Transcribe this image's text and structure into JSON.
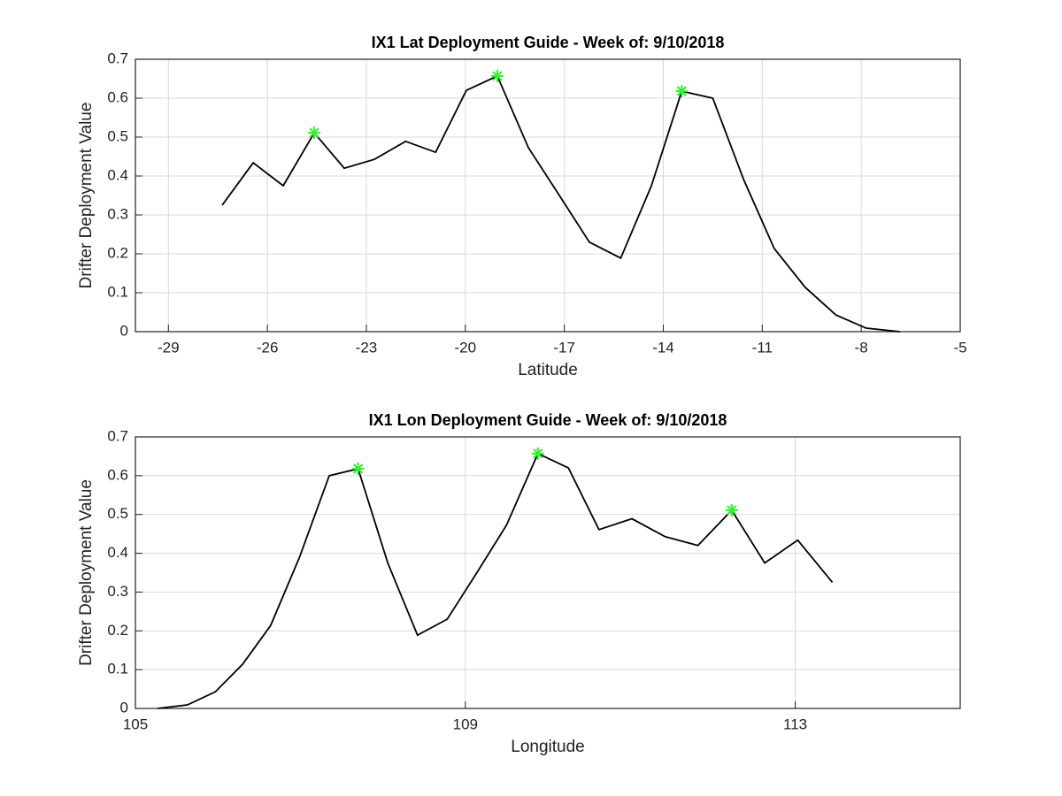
{
  "chart_data": [
    {
      "type": "line",
      "title": "IX1 Lat Deployment Guide - Week of: 9/10/2018",
      "x_label": "Latitude",
      "y_label": "Drifter Deployment Value",
      "xlim": [
        -30,
        -5
      ],
      "xticks": [
        -29,
        -26,
        -23,
        -20,
        -17,
        -14,
        -11,
        -8,
        -5
      ],
      "ylim": [
        0,
        0.7
      ],
      "yticks": [
        0,
        0.1,
        0.2,
        0.3,
        0.4,
        0.5,
        0.6,
        0.7
      ],
      "grid": true,
      "series": [
        {
          "color": "#000000",
          "x": [
            -27.37,
            -26.43,
            -25.52,
            -24.58,
            -23.67,
            -22.75,
            -21.81,
            -20.9,
            -19.97,
            -19.03,
            -18.09,
            -17.15,
            -16.24,
            -15.29,
            -14.36,
            -13.44,
            -12.5,
            -11.56,
            -10.64,
            -9.7,
            -8.77,
            -7.85,
            -6.83
          ],
          "values": [
            0.325,
            0.434,
            0.375,
            0.511,
            0.42,
            0.443,
            0.489,
            0.461,
            0.62,
            0.657,
            0.473,
            0.35,
            0.23,
            0.189,
            0.375,
            0.618,
            0.6,
            0.39,
            0.214,
            0.114,
            0.043,
            0.009,
            0
          ]
        },
        {
          "color": "#33ee33",
          "marker": "*",
          "x": [
            -24.58,
            -19.03,
            -13.44
          ],
          "values": [
            0.511,
            0.657,
            0.618
          ]
        }
      ]
    },
    {
      "type": "line",
      "title": "IX1 Lon Deployment Guide - Week of: 9/10/2018",
      "x_label": "Longitude",
      "y_label": "Drifter Deployment Value",
      "xlim": [
        105,
        115
      ],
      "xticks": [
        105,
        109,
        113
      ],
      "ylim": [
        0,
        0.7
      ],
      "yticks": [
        0,
        0.1,
        0.2,
        0.3,
        0.4,
        0.5,
        0.6,
        0.7
      ],
      "grid": true,
      "series": [
        {
          "color": "#000000",
          "x": [
            105.27,
            105.63,
            105.97,
            106.3,
            106.64,
            106.99,
            107.35,
            107.7,
            108.06,
            108.42,
            108.78,
            109.14,
            109.5,
            109.88,
            110.25,
            110.62,
            111.02,
            111.42,
            111.82,
            112.23,
            112.63,
            113.03,
            113.45
          ],
          "values": [
            0,
            0.009,
            0.043,
            0.114,
            0.214,
            0.39,
            0.6,
            0.618,
            0.375,
            0.189,
            0.23,
            0.35,
            0.473,
            0.657,
            0.62,
            0.461,
            0.489,
            0.443,
            0.42,
            0.511,
            0.375,
            0.434,
            0.325
          ]
        },
        {
          "color": "#33ee33",
          "marker": "*",
          "x": [
            107.7,
            109.88,
            112.23
          ],
          "values": [
            0.618,
            0.657,
            0.511
          ]
        }
      ]
    }
  ]
}
